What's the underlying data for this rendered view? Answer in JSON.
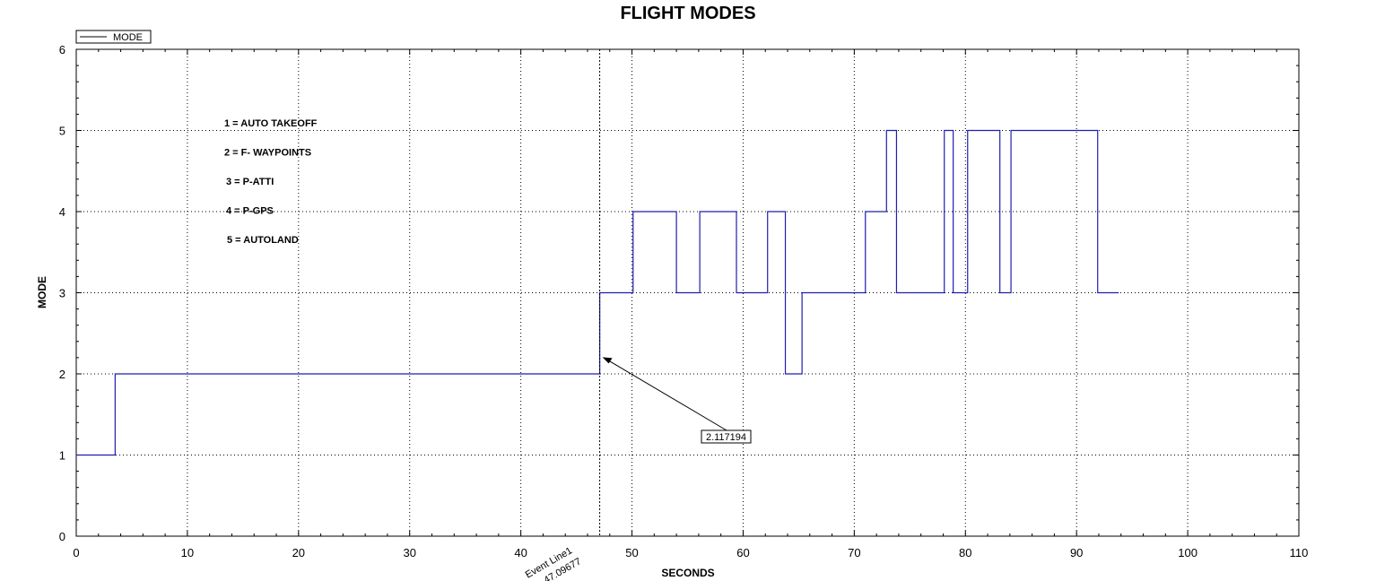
{
  "chart_data": {
    "type": "line",
    "title": "FLIGHT MODES",
    "xlabel": "SECONDS",
    "ylabel": "MODE",
    "xlim": [
      0,
      110
    ],
    "ylim": [
      0,
      6
    ],
    "x_ticks": [
      0,
      10,
      20,
      30,
      40,
      50,
      60,
      70,
      80,
      90,
      100,
      110
    ],
    "y_ticks": [
      0,
      1,
      2,
      3,
      4,
      5,
      6
    ],
    "grid": true,
    "legend": {
      "position": "top-left",
      "entries": [
        "MODE"
      ]
    },
    "series": [
      {
        "name": "MODE",
        "color": "#1f1fb0",
        "step": true,
        "x": [
          0,
          3.5,
          47.1,
          47.2,
          50.1,
          54.0,
          56.1,
          59.4,
          62.2,
          63.8,
          65.3,
          71.0,
          72.9,
          73.8,
          78.1,
          78.9,
          80.2,
          83.1,
          84.1,
          91.9,
          93.8
        ],
        "y": [
          1,
          2,
          3,
          3,
          4,
          3,
          4,
          3,
          4,
          2,
          3,
          4,
          5,
          3,
          5,
          3,
          5,
          3,
          5,
          3,
          3
        ]
      }
    ],
    "annotations": {
      "mode_notes": [
        "1 = AUTO TAKEOFF",
        "2 = F- WAYPOINTS",
        "3 = P-ATTI",
        "4 = P-GPS",
        "5 = AUTOLAND"
      ],
      "event_line": {
        "x": 47.09677,
        "label": "Event Line1",
        "value_label": "47.09677"
      },
      "point_label": {
        "x": 47.09677,
        "y": 2.117194,
        "text": "2.117194"
      }
    }
  }
}
